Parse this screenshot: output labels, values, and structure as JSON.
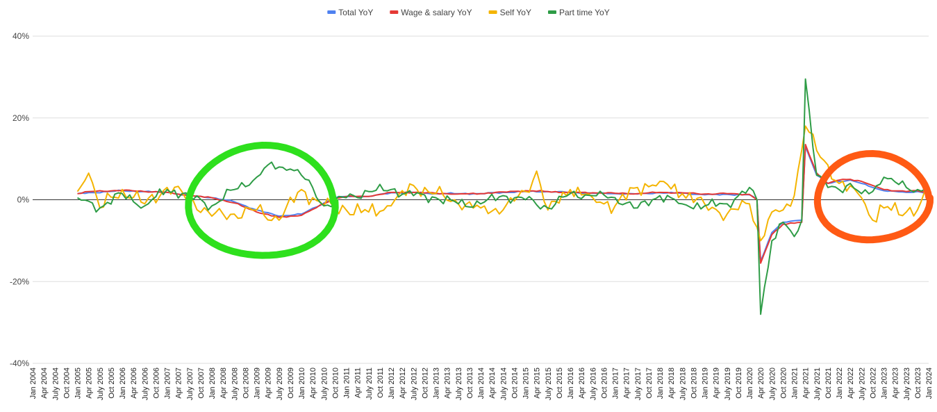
{
  "chart_data": {
    "type": "line",
    "title": "",
    "xlabel": "",
    "ylabel": "",
    "ylim": [
      -40,
      40
    ],
    "y_ticks": [
      {
        "value": 40,
        "label": "40%"
      },
      {
        "value": 20,
        "label": "20%"
      },
      {
        "value": 0,
        "label": "0%"
      },
      {
        "value": -20,
        "label": "-20%"
      },
      {
        "value": -40,
        "label": "-40%"
      }
    ],
    "grid": true,
    "legend_position": "top",
    "x_start": "Jan 2004",
    "months": 241,
    "x_tick_labels": [
      "Jan 2004",
      "Apr 2004",
      "July 2004",
      "Oct 2004",
      "Jan 2005",
      "Apr 2005",
      "July 2005",
      "Oct 2005",
      "Jan 2006",
      "Apr 2006",
      "July 2006",
      "Oct 2006",
      "Jan 2007",
      "Apr 2007",
      "July 2007",
      "Oct 2007",
      "Jan 2008",
      "Apr 2008",
      "July 2008",
      "Oct 2008",
      "Jan 2009",
      "Apr 2009",
      "July 2009",
      "Oct 2009",
      "Jan 2010",
      "Apr 2010",
      "July 2010",
      "Oct 2010",
      "Jan 2011",
      "Apr 2011",
      "July 2011",
      "Oct 2011",
      "Jan 2012",
      "Apr 2012",
      "July 2012",
      "Oct 2012",
      "Jan 2013",
      "Apr 2013",
      "July 2013",
      "Oct 2013",
      "Jan 2014",
      "Apr 2014",
      "July 2014",
      "Oct 2014",
      "Jan 2015",
      "Apr 2015",
      "July 2015",
      "Oct 2015",
      "Jan 2016",
      "Apr 2016",
      "July 2016",
      "Oct 2016",
      "Jan 2017",
      "Apr 2017",
      "July 2017",
      "Oct 2017",
      "Jan 2018",
      "Apr 2018",
      "July 2018",
      "Oct 2018",
      "Jan 2019",
      "Apr 2019",
      "July 2019",
      "Oct 2019",
      "Jan 2020",
      "Apr 2020",
      "July 2020",
      "Oct 2020",
      "Jan 2021",
      "Apr 2021",
      "July 2021",
      "Oct 2021",
      "Jan 2022",
      "Apr 2022",
      "July 2022",
      "Oct 2022",
      "Jan 2023",
      "Apr 2023",
      "July 2023",
      "Oct 2023",
      "Jan 2024"
    ],
    "series": [
      {
        "name": "Total YoY",
        "color": "#4f81f0",
        "start": "Jan 2005",
        "anchors": [
          [
            "Jan 2005",
            1.5
          ],
          [
            "Jan 2006",
            2.2
          ],
          [
            "Jan 2007",
            1.8
          ],
          [
            "July 2007",
            1.0
          ],
          [
            "Jan 2008",
            0.5
          ],
          [
            "July 2008",
            -0.5
          ],
          [
            "Jan 2009",
            -2.5
          ],
          [
            "July 2009",
            -4.0
          ],
          [
            "Jan 2010",
            -3.5
          ],
          [
            "July 2010",
            -0.8
          ],
          [
            "Oct 2010",
            0.5
          ],
          [
            "Jan 2011",
            0.8
          ],
          [
            "July 2011",
            0.8
          ],
          [
            "Jan 2012",
            1.7
          ],
          [
            "July 2012",
            1.8
          ],
          [
            "Jan 2013",
            1.5
          ],
          [
            "July 2013",
            1.5
          ],
          [
            "Jan 2014",
            1.5
          ],
          [
            "July 2014",
            1.8
          ],
          [
            "Jan 2015",
            2.0
          ],
          [
            "July 2015",
            2.0
          ],
          [
            "Jan 2016",
            1.8
          ],
          [
            "July 2016",
            1.6
          ],
          [
            "Jan 2017",
            1.5
          ],
          [
            "July 2017",
            1.4
          ],
          [
            "Jan 2018",
            1.7
          ],
          [
            "July 2018",
            1.6
          ],
          [
            "Jan 2019",
            1.2
          ],
          [
            "July 2019",
            1.3
          ],
          [
            "Jan 2020",
            1.2
          ],
          [
            "Mar 2020",
            0.0
          ],
          [
            "Apr 2020",
            -15.0
          ],
          [
            "July 2020",
            -8.0
          ],
          [
            "Oct 2020",
            -5.5
          ],
          [
            "Mar 2021",
            -5.0
          ],
          [
            "Apr 2021",
            13.0
          ],
          [
            "July 2021",
            6.0
          ],
          [
            "Oct 2021",
            4.0
          ],
          [
            "Jan 2022",
            4.5
          ],
          [
            "Apr 2022",
            4.8
          ],
          [
            "July 2022",
            4.0
          ],
          [
            "Oct 2022",
            3.0
          ],
          [
            "Jan 2023",
            2.2
          ],
          [
            "July 2023",
            1.8
          ],
          [
            "Oct 2023",
            2.0
          ],
          [
            "Jan 2024",
            1.5
          ]
        ]
      },
      {
        "name": "Wage & salary YoY",
        "color": "#e53935",
        "start": "Jan 2005",
        "anchors": [
          [
            "Jan 2005",
            1.5
          ],
          [
            "Apr 2005",
            2.0
          ],
          [
            "Jan 2006",
            2.3
          ],
          [
            "Jan 2007",
            1.8
          ],
          [
            "July 2007",
            1.0
          ],
          [
            "Jan 2008",
            0.5
          ],
          [
            "July 2008",
            -0.8
          ],
          [
            "Jan 2009",
            -3.0
          ],
          [
            "July 2009",
            -4.3
          ],
          [
            "Jan 2010",
            -3.8
          ],
          [
            "July 2010",
            -1.0
          ],
          [
            "Oct 2010",
            0.4
          ],
          [
            "Jan 2011",
            0.8
          ],
          [
            "July 2011",
            0.8
          ],
          [
            "Jan 2012",
            1.8
          ],
          [
            "July 2012",
            1.8
          ],
          [
            "Jan 2013",
            1.6
          ],
          [
            "July 2013",
            1.4
          ],
          [
            "Jan 2014",
            1.5
          ],
          [
            "July 2014",
            1.9
          ],
          [
            "Jan 2015",
            2.2
          ],
          [
            "July 2015",
            2.0
          ],
          [
            "Jan 2016",
            1.8
          ],
          [
            "July 2016",
            1.7
          ],
          [
            "Jan 2017",
            1.6
          ],
          [
            "July 2017",
            1.5
          ],
          [
            "Jan 2018",
            1.8
          ],
          [
            "July 2018",
            1.7
          ],
          [
            "Jan 2019",
            1.4
          ],
          [
            "July 2019",
            1.5
          ],
          [
            "Jan 2020",
            1.3
          ],
          [
            "Mar 2020",
            0.0
          ],
          [
            "Apr 2020",
            -15.5
          ],
          [
            "July 2020",
            -8.5
          ],
          [
            "Oct 2020",
            -6.0
          ],
          [
            "Mar 2021",
            -5.5
          ],
          [
            "Apr 2021",
            13.5
          ],
          [
            "July 2021",
            6.5
          ],
          [
            "Oct 2021",
            4.0
          ],
          [
            "Jan 2022",
            4.8
          ],
          [
            "Apr 2022",
            5.0
          ],
          [
            "July 2022",
            4.5
          ],
          [
            "Oct 2022",
            3.5
          ],
          [
            "Jan 2023",
            2.5
          ],
          [
            "July 2023",
            2.0
          ],
          [
            "Oct 2023",
            2.2
          ],
          [
            "Jan 2024",
            1.8
          ]
        ]
      },
      {
        "name": "Self YoY",
        "color": "#f4b400",
        "start": "Jan 2005",
        "anchors": [
          [
            "Jan 2005",
            2.0
          ],
          [
            "Apr 2005",
            6.5
          ],
          [
            "July 2005",
            -2.0
          ],
          [
            "Jan 2006",
            2.5
          ],
          [
            "July 2006",
            -1.0
          ],
          [
            "Jan 2007",
            3.0
          ],
          [
            "July 2007",
            0.5
          ],
          [
            "Jan 2008",
            -4.0
          ],
          [
            "July 2008",
            -3.5
          ],
          [
            "Jan 2009",
            -2.5
          ],
          [
            "July 2009",
            -5.0
          ],
          [
            "Jan 2010",
            2.5
          ],
          [
            "July 2010",
            -1.5
          ],
          [
            "Jan 2011",
            -2.5
          ],
          [
            "July 2011",
            -3.0
          ],
          [
            "Jan 2012",
            -1.5
          ],
          [
            "July 2012",
            3.5
          ],
          [
            "Jan 2013",
            1.5
          ],
          [
            "July 2013",
            -1.0
          ],
          [
            "Jan 2014",
            -2.0
          ],
          [
            "July 2014",
            -2.5
          ],
          [
            "Jan 2015",
            2.0
          ],
          [
            "Apr 2015",
            7.0
          ],
          [
            "July 2015",
            -2.5
          ],
          [
            "Jan 2016",
            2.5
          ],
          [
            "July 2016",
            0.5
          ],
          [
            "Jan 2017",
            -1.5
          ],
          [
            "July 2017",
            3.0
          ],
          [
            "Jan 2018",
            4.5
          ],
          [
            "July 2018",
            1.5
          ],
          [
            "Jan 2019",
            -1.0
          ],
          [
            "July 2019",
            -3.5
          ],
          [
            "Jan 2020",
            -1.0
          ],
          [
            "Apr 2020",
            -10.0
          ],
          [
            "July 2020",
            -3.0
          ],
          [
            "Oct 2020",
            -2.5
          ],
          [
            "Jan 2021",
            1.0
          ],
          [
            "Apr 2021",
            18.0
          ],
          [
            "July 2021",
            12.0
          ],
          [
            "Oct 2021",
            8.5
          ],
          [
            "Jan 2022",
            4.0
          ],
          [
            "July 2022",
            0.5
          ],
          [
            "Oct 2022",
            -5.0
          ],
          [
            "Jan 2023",
            -2.0
          ],
          [
            "July 2023",
            -3.0
          ],
          [
            "Oct 2023",
            -2.5
          ],
          [
            "Jan 2024",
            1.5
          ]
        ]
      },
      {
        "name": "Part time YoY",
        "color": "#2e9c46",
        "start": "Jan 2005",
        "anchors": [
          [
            "Jan 2005",
            0.5
          ],
          [
            "July 2005",
            -2.0
          ],
          [
            "Jan 2006",
            1.5
          ],
          [
            "July 2006",
            -1.5
          ],
          [
            "Jan 2007",
            2.5
          ],
          [
            "July 2007",
            1.0
          ],
          [
            "Jan 2008",
            -1.5
          ],
          [
            "July 2008",
            2.5
          ],
          [
            "Jan 2009",
            5.5
          ],
          [
            "Apr 2009",
            8.5
          ],
          [
            "July 2009",
            8.0
          ],
          [
            "Oct 2009",
            7.5
          ],
          [
            "Jan 2010",
            6.0
          ],
          [
            "Apr 2010",
            3.0
          ],
          [
            "July 2010",
            -1.5
          ],
          [
            "Jan 2011",
            0.5
          ],
          [
            "July 2011",
            2.0
          ],
          [
            "Jan 2012",
            2.5
          ],
          [
            "July 2012",
            1.0
          ],
          [
            "Jan 2013",
            0.5
          ],
          [
            "July 2013",
            -1.0
          ],
          [
            "Jan 2014",
            -1.0
          ],
          [
            "July 2014",
            1.0
          ],
          [
            "Jan 2015",
            0.0
          ],
          [
            "July 2015",
            -2.0
          ],
          [
            "Jan 2016",
            1.5
          ],
          [
            "July 2016",
            1.0
          ],
          [
            "Jan 2017",
            0.5
          ],
          [
            "July 2017",
            -2.0
          ],
          [
            "Jan 2018",
            1.0
          ],
          [
            "July 2018",
            -1.0
          ],
          [
            "Jan 2019",
            -1.5
          ],
          [
            "July 2019",
            -1.0
          ],
          [
            "Jan 2020",
            3.0
          ],
          [
            "Mar 2020",
            0.0
          ],
          [
            "Apr 2020",
            -28.0
          ],
          [
            "July 2020",
            -10.0
          ],
          [
            "Oct 2020",
            -5.5
          ],
          [
            "Jan 2021",
            -9.0
          ],
          [
            "Mar 2021",
            -5.0
          ],
          [
            "Apr 2021",
            29.5
          ],
          [
            "July 2021",
            6.0
          ],
          [
            "Oct 2021",
            3.0
          ],
          [
            "Jan 2022",
            2.5
          ],
          [
            "Apr 2022",
            4.0
          ],
          [
            "July 2022",
            1.5
          ],
          [
            "Oct 2022",
            2.0
          ],
          [
            "Jan 2023",
            5.5
          ],
          [
            "July 2023",
            3.0
          ],
          [
            "Oct 2023",
            2.5
          ],
          [
            "Jan 2024",
            3.5
          ]
        ]
      }
    ],
    "annotations": [
      {
        "shape": "hand-drawn-circle",
        "color": "#2ee01d",
        "from": "July 2007",
        "to": "Oct 2010",
        "y_range": [
          -14,
          13
        ]
      },
      {
        "shape": "hand-drawn-circle",
        "color": "#ff5a14",
        "from": "July 2021",
        "to": "Jan 2024",
        "y_range": [
          -10,
          11
        ]
      }
    ]
  }
}
